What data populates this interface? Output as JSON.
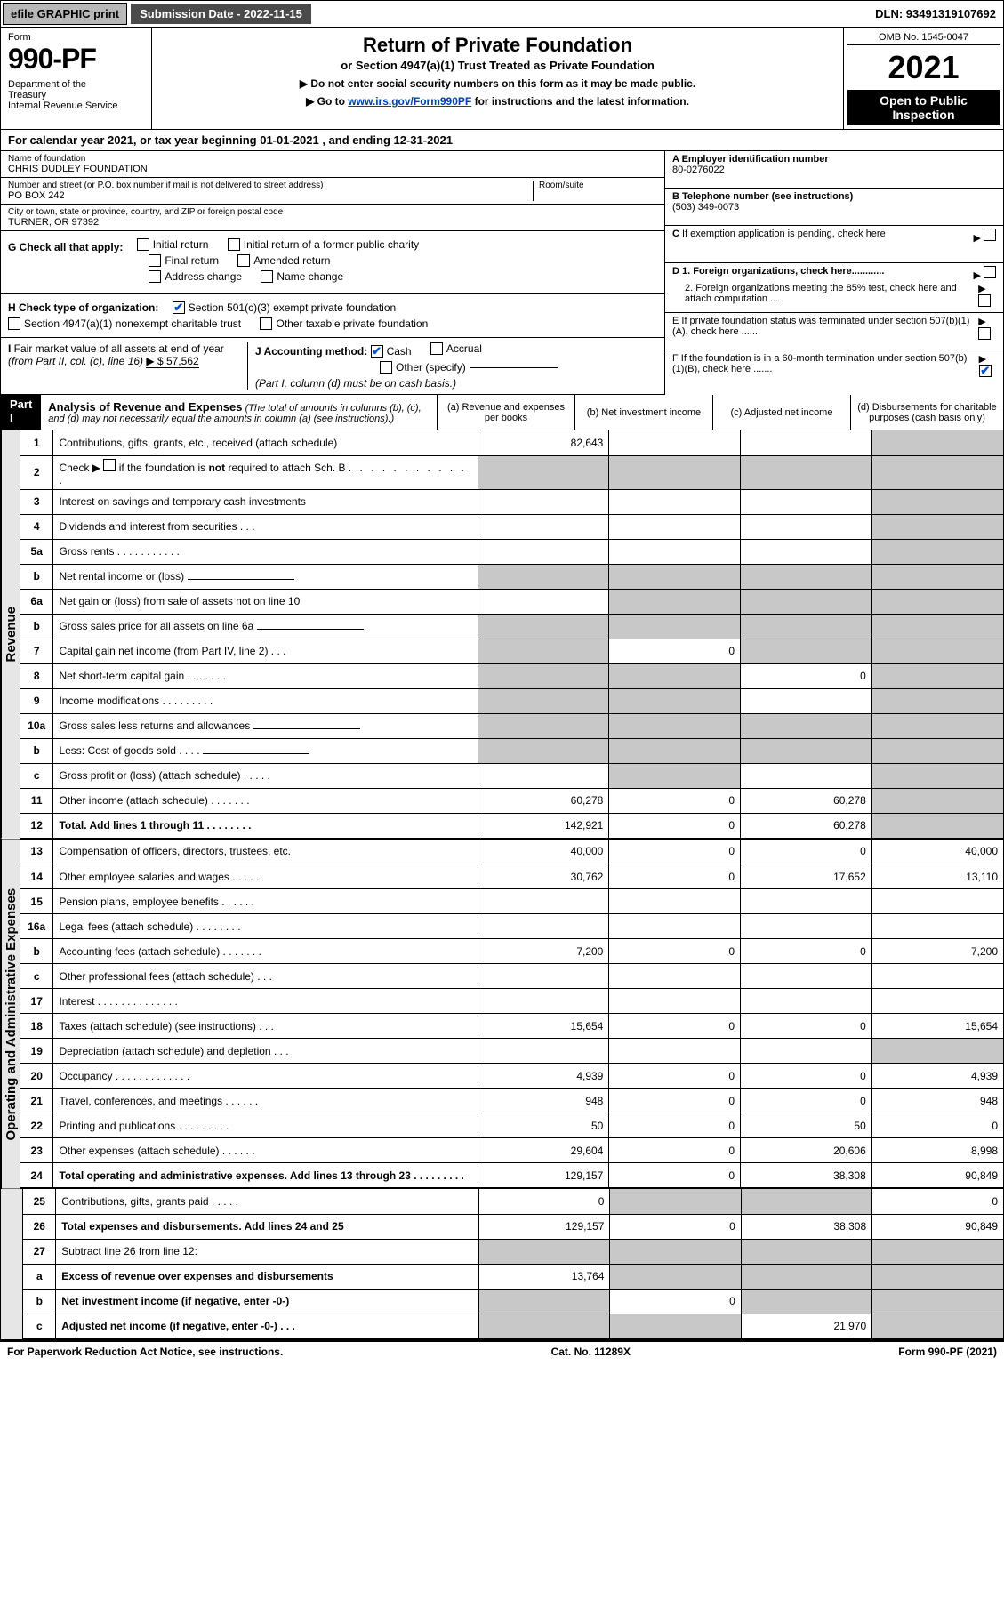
{
  "topbar": {
    "efile": "efile GRAPHIC print",
    "submission": "Submission Date - 2022-11-15",
    "dln": "DLN: 93491319107692"
  },
  "header": {
    "form_label": "Form",
    "form_number": "990-PF",
    "dept": "Department of the Treasury\nInternal Revenue Service",
    "title": "Return of Private Foundation",
    "subtitle": "or Section 4947(a)(1) Trust Treated as Private Foundation",
    "note1": "▶ Do not enter social security numbers on this form as it may be made public.",
    "note2_pre": "▶ Go to ",
    "note2_link": "www.irs.gov/Form990PF",
    "note2_post": " for instructions and the latest information.",
    "omb": "OMB No. 1545-0047",
    "year": "2021",
    "open": "Open to Public Inspection"
  },
  "cal_year": "For calendar year 2021, or tax year beginning 01-01-2021                  , and ending 12-31-2021",
  "foundation": {
    "name_label": "Name of foundation",
    "name": "CHRIS DUDLEY FOUNDATION",
    "addr_label": "Number and street (or P.O. box number if mail is not delivered to street address)",
    "room_label": "Room/suite",
    "addr": "PO BOX 242",
    "city_label": "City or town, state or province, country, and ZIP or foreign postal code",
    "city": "TURNER, OR  97392"
  },
  "boxA": {
    "label": "A Employer identification number",
    "value": "80-0276022"
  },
  "boxB": {
    "label": "B Telephone number (see instructions)",
    "value": "(503) 349-0073"
  },
  "boxC": {
    "label": "C If exemption application is pending, check here"
  },
  "boxD": {
    "d1": "D 1. Foreign organizations, check here............",
    "d2": "2. Foreign organizations meeting the 85% test, check here and attach computation ..."
  },
  "boxE": {
    "label": "E  If private foundation status was terminated under section 507(b)(1)(A), check here ......."
  },
  "boxF": {
    "label": "F  If the foundation is in a 60-month termination under section 507(b)(1)(B), check here ......."
  },
  "checkG": {
    "label": "G Check all that apply:",
    "items": [
      "Initial return",
      "Initial return of a former public charity",
      "Final return",
      "Amended return",
      "Address change",
      "Name change"
    ]
  },
  "checkH": {
    "label": "H Check type of organization:",
    "opt1": "Section 501(c)(3) exempt private foundation",
    "opt2": "Section 4947(a)(1) nonexempt charitable trust",
    "opt3": "Other taxable private foundation"
  },
  "boxI": {
    "label": "I Fair market value of all assets at end of year (from Part II, col. (c), line 16)",
    "value": "▶ $  57,562"
  },
  "boxJ": {
    "label": "J Accounting method:",
    "cash": "Cash",
    "accrual": "Accrual",
    "other": "Other (specify)",
    "note": "(Part I, column (d) must be on cash basis.)"
  },
  "part1": {
    "label": "Part I",
    "title": "Analysis of Revenue and Expenses",
    "sub": "(The total of amounts in columns (b), (c), and (d) may not necessarily equal the amounts in column (a) (see instructions).)",
    "cols": {
      "a": "(a)  Revenue and expenses per books",
      "b": "(b)  Net investment income",
      "c": "(c)  Adjusted net income",
      "d": "(d)  Disbursements for charitable purposes (cash basis only)"
    }
  },
  "side_labels": {
    "revenue": "Revenue",
    "expenses": "Operating and Administrative Expenses"
  },
  "rows": [
    {
      "n": "1",
      "l": "Contributions, gifts, grants, etc., received (attach schedule)",
      "a": "82,643",
      "b": "",
      "c": "",
      "d": "grey"
    },
    {
      "n": "2",
      "l": "Check ▶ ☐ if the foundation is not required to attach Sch. B",
      "span": true
    },
    {
      "n": "3",
      "l": "Interest on savings and temporary cash investments",
      "a": "",
      "b": "",
      "c": "",
      "d": "grey"
    },
    {
      "n": "4",
      "l": "Dividends and interest from securities   .   .   .",
      "a": "",
      "b": "",
      "c": "",
      "d": "grey"
    },
    {
      "n": "5a",
      "l": "Gross rents     .    .    .    .    .    .    .    .    .    .    .",
      "a": "",
      "b": "",
      "c": "",
      "d": "grey"
    },
    {
      "n": "b",
      "l": "Net rental income or (loss)",
      "inset": true
    },
    {
      "n": "6a",
      "l": "Net gain or (loss) from sale of assets not on line 10",
      "a": "",
      "b": "grey",
      "c": "grey",
      "d": "grey"
    },
    {
      "n": "b",
      "l": "Gross sales price for all assets on line 6a",
      "inset": true
    },
    {
      "n": "7",
      "l": "Capital gain net income (from Part IV, line 2)   .   .   .",
      "a": "grey",
      "b": "0",
      "c": "grey",
      "d": "grey"
    },
    {
      "n": "8",
      "l": "Net short-term capital gain   .   .   .   .   .   .   .",
      "a": "grey",
      "b": "grey",
      "c": "0",
      "d": "grey"
    },
    {
      "n": "9",
      "l": "Income modifications  .   .   .   .   .   .   .   .   .",
      "a": "grey",
      "b": "grey",
      "c": "",
      "d": "grey"
    },
    {
      "n": "10a",
      "l": "Gross sales less returns and allowances",
      "inset": true
    },
    {
      "n": "b",
      "l": "Less: Cost of goods sold    .   .   .   .",
      "inset": true
    },
    {
      "n": "c",
      "l": "Gross profit or (loss) (attach schedule)    .   .   .   .   .",
      "a": "",
      "b": "grey",
      "c": "",
      "d": "grey"
    },
    {
      "n": "11",
      "l": "Other income (attach schedule)   .   .   .   .   .   .   .",
      "a": "60,278",
      "b": "0",
      "c": "60,278",
      "d": "grey"
    },
    {
      "n": "12",
      "l": "Total. Add lines 1 through 11   .   .   .   .   .   .   .   .",
      "bold": true,
      "a": "142,921",
      "b": "0",
      "c": "60,278",
      "d": "grey"
    },
    {
      "n": "13",
      "l": "Compensation of officers, directors, trustees, etc.",
      "a": "40,000",
      "b": "0",
      "c": "0",
      "d": "40,000"
    },
    {
      "n": "14",
      "l": "Other employee salaries and wages   .   .   .   .   .",
      "a": "30,762",
      "b": "0",
      "c": "17,652",
      "d": "13,110"
    },
    {
      "n": "15",
      "l": "Pension plans, employee benefits  .   .   .   .   .   .",
      "a": "",
      "b": "",
      "c": "",
      "d": ""
    },
    {
      "n": "16a",
      "l": "Legal fees (attach schedule)  .   .   .   .   .   .   .   .",
      "a": "",
      "b": "",
      "c": "",
      "d": ""
    },
    {
      "n": "b",
      "l": "Accounting fees (attach schedule)  .   .   .   .   .   .   .",
      "a": "7,200",
      "b": "0",
      "c": "0",
      "d": "7,200"
    },
    {
      "n": "c",
      "l": "Other professional fees (attach schedule)   .   .   .",
      "a": "",
      "b": "",
      "c": "",
      "d": ""
    },
    {
      "n": "17",
      "l": "Interest  .   .   .   .   .   .   .   .   .   .   .   .   .   .",
      "a": "",
      "b": "",
      "c": "",
      "d": ""
    },
    {
      "n": "18",
      "l": "Taxes (attach schedule) (see instructions)    .   .   .",
      "a": "15,654",
      "b": "0",
      "c": "0",
      "d": "15,654"
    },
    {
      "n": "19",
      "l": "Depreciation (attach schedule) and depletion   .   .   .",
      "a": "",
      "b": "",
      "c": "",
      "d": "grey"
    },
    {
      "n": "20",
      "l": "Occupancy  .   .   .   .   .   .   .   .   .   .   .   .   .",
      "a": "4,939",
      "b": "0",
      "c": "0",
      "d": "4,939"
    },
    {
      "n": "21",
      "l": "Travel, conferences, and meetings  .   .   .   .   .   .",
      "a": "948",
      "b": "0",
      "c": "0",
      "d": "948"
    },
    {
      "n": "22",
      "l": "Printing and publications  .   .   .   .   .   .   .   .   .",
      "a": "50",
      "b": "0",
      "c": "50",
      "d": "0"
    },
    {
      "n": "23",
      "l": "Other expenses (attach schedule)  .   .   .   .   .   .",
      "a": "29,604",
      "b": "0",
      "c": "20,606",
      "d": "8,998"
    },
    {
      "n": "24",
      "l": "Total operating and administrative expenses. Add lines 13 through 23   .   .   .   .   .   .   .   .   .",
      "bold": true,
      "a": "129,157",
      "b": "0",
      "c": "38,308",
      "d": "90,849"
    },
    {
      "n": "25",
      "l": "Contributions, gifts, grants paid    .   .   .   .   .",
      "a": "0",
      "b": "grey",
      "c": "grey",
      "d": "0"
    },
    {
      "n": "26",
      "l": "Total expenses and disbursements. Add lines 24 and 25",
      "bold": true,
      "a": "129,157",
      "b": "0",
      "c": "38,308",
      "d": "90,849"
    },
    {
      "n": "27",
      "l": "Subtract line 26 from line 12:",
      "noamt": true
    },
    {
      "n": "a",
      "l": "Excess of revenue over expenses and disbursements",
      "bold": true,
      "a": "13,764",
      "b": "grey",
      "c": "grey",
      "d": "grey"
    },
    {
      "n": "b",
      "l": "Net investment income (if negative, enter -0-)",
      "bold": true,
      "a": "grey",
      "b": "0",
      "c": "grey",
      "d": "grey"
    },
    {
      "n": "c",
      "l": "Adjusted net income (if negative, enter -0-)   .   .   .",
      "bold": true,
      "a": "grey",
      "b": "grey",
      "c": "21,970",
      "d": "grey"
    }
  ],
  "footer": {
    "left": "For Paperwork Reduction Act Notice, see instructions.",
    "mid": "Cat. No. 11289X",
    "right": "Form 990-PF (2021)"
  },
  "colors": {
    "grey_cell": "#c8c8c8",
    "header_black": "#000000",
    "link": "#0040aa",
    "check_green": "#1a7f1a",
    "check_blue": "#0050d0",
    "topbar_btn": "#b8b8b8",
    "topbar_dark": "#4a4a4a",
    "side_bg": "#e6e6e6"
  }
}
